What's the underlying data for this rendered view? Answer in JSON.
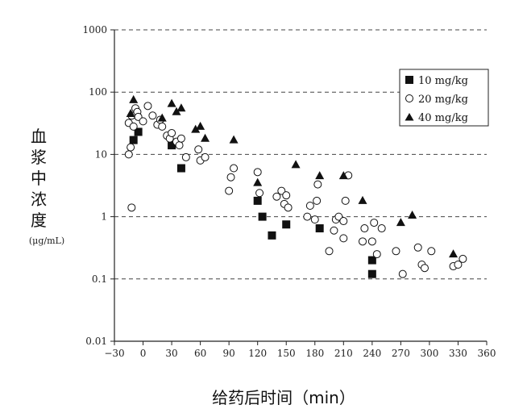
{
  "chart_data": {
    "type": "scatter",
    "title": "",
    "xlabel": "给药后时间（min）",
    "ylabel": "血浆中浓度",
    "ylabel_unit": "(μg/mL)",
    "yscale": "log",
    "xlim": [
      -30,
      360
    ],
    "ylim": [
      0.01,
      1000
    ],
    "xticks": [
      -30,
      0,
      30,
      60,
      90,
      120,
      150,
      180,
      210,
      240,
      270,
      300,
      330,
      360
    ],
    "xtick_labels": [
      "−30",
      "0",
      "30",
      "60",
      "90",
      "120",
      "150",
      "180",
      "210",
      "240",
      "270",
      "300",
      "330",
      "360"
    ],
    "yticks": [
      0.01,
      0.1,
      1,
      10,
      100,
      1000
    ],
    "ytick_labels": [
      "0.01",
      "0.1",
      "1",
      "10",
      "100",
      "1000"
    ],
    "grid": "horizontal dashed",
    "legend_position": "top-right",
    "series": [
      {
        "name": "10 mg/kg",
        "marker": "filled-square",
        "color": "#111111",
        "points": [
          [
            -10,
            17
          ],
          [
            -5,
            23
          ],
          [
            30,
            14
          ],
          [
            40,
            6
          ],
          [
            120,
            1.8
          ],
          [
            125,
            1.0
          ],
          [
            135,
            0.5
          ],
          [
            150,
            0.75
          ],
          [
            185,
            0.65
          ],
          [
            240,
            0.2
          ],
          [
            240,
            0.12
          ]
        ]
      },
      {
        "name": "20 mg/kg",
        "marker": "open-circle",
        "color": "#111111",
        "points": [
          [
            -15,
            32
          ],
          [
            -12,
            42
          ],
          [
            -10,
            28
          ],
          [
            -8,
            55
          ],
          [
            -6,
            48
          ],
          [
            -5,
            40
          ],
          [
            0,
            34
          ],
          [
            5,
            60
          ],
          [
            10,
            42
          ],
          [
            15,
            30
          ],
          [
            18,
            36
          ],
          [
            20,
            28
          ],
          [
            25,
            20
          ],
          [
            28,
            18
          ],
          [
            30,
            22
          ],
          [
            35,
            16
          ],
          [
            38,
            14
          ],
          [
            40,
            18
          ],
          [
            45,
            9
          ],
          [
            -15,
            10
          ],
          [
            -13,
            13
          ],
          [
            -12,
            1.4
          ],
          [
            58,
            12
          ],
          [
            60,
            8
          ],
          [
            65,
            9
          ],
          [
            90,
            2.6
          ],
          [
            92,
            4.3
          ],
          [
            95,
            6
          ],
          [
            120,
            5.2
          ],
          [
            122,
            2.4
          ],
          [
            140,
            2.1
          ],
          [
            145,
            2.6
          ],
          [
            148,
            1.6
          ],
          [
            150,
            2.2
          ],
          [
            152,
            1.4
          ],
          [
            172,
            1.0
          ],
          [
            175,
            1.5
          ],
          [
            180,
            0.9
          ],
          [
            182,
            1.8
          ],
          [
            183,
            3.3
          ],
          [
            200,
            0.6
          ],
          [
            202,
            0.9
          ],
          [
            205,
            1.0
          ],
          [
            210,
            0.85
          ],
          [
            212,
            1.8
          ],
          [
            215,
            4.6
          ],
          [
            195,
            0.28
          ],
          [
            230,
            0.4
          ],
          [
            232,
            0.65
          ],
          [
            240,
            0.4
          ],
          [
            242,
            0.8
          ],
          [
            245,
            0.25
          ],
          [
            250,
            0.65
          ],
          [
            265,
            0.28
          ],
          [
            272,
            0.12
          ],
          [
            288,
            0.32
          ],
          [
            292,
            0.17
          ],
          [
            295,
            0.15
          ],
          [
            302,
            0.28
          ],
          [
            325,
            0.16
          ],
          [
            330,
            0.17
          ],
          [
            335,
            0.21
          ],
          [
            210,
            0.45
          ]
        ]
      },
      {
        "name": "40 mg/kg",
        "marker": "filled-triangle",
        "color": "#111111",
        "points": [
          [
            -13,
            45
          ],
          [
            -10,
            75
          ],
          [
            20,
            38
          ],
          [
            30,
            65
          ],
          [
            35,
            48
          ],
          [
            40,
            55
          ],
          [
            55,
            25
          ],
          [
            60,
            28
          ],
          [
            65,
            18
          ],
          [
            95,
            17
          ],
          [
            120,
            3.5
          ],
          [
            160,
            6.8
          ],
          [
            185,
            4.5
          ],
          [
            210,
            4.5
          ],
          [
            230,
            1.8
          ],
          [
            270,
            0.8
          ],
          [
            282,
            1.05
          ],
          [
            325,
            0.25
          ]
        ]
      }
    ]
  }
}
